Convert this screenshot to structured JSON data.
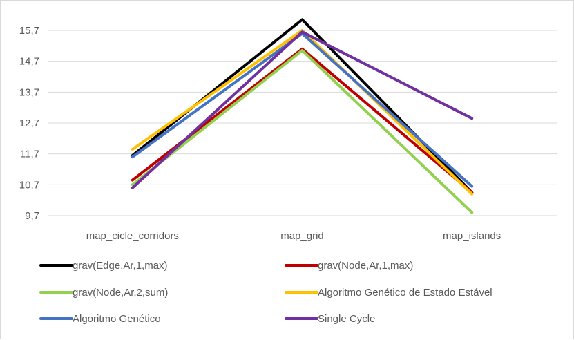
{
  "chart_data": {
    "type": "line",
    "title": "",
    "xlabel": "",
    "ylabel": "",
    "categories": [
      "map_cicle_corridors",
      "map_grid",
      "map_islands"
    ],
    "ylim": [
      9.7,
      15.7
    ],
    "yticks": [
      "9,7",
      "10,7",
      "11,7",
      "12,7",
      "13,7",
      "14,7",
      "15,7"
    ],
    "ytick_values": [
      9.7,
      10.7,
      11.7,
      12.7,
      13.7,
      14.7,
      15.7
    ],
    "grid": true,
    "legend_position": "bottom",
    "series": [
      {
        "name": "grav(Edge,Ar,1,max)",
        "color": "#000000",
        "values": [
          11.65,
          16.05,
          10.45
        ]
      },
      {
        "name": "grav(Node,Ar,1,max)",
        "color": "#c00000",
        "values": [
          10.85,
          15.1,
          10.45
        ]
      },
      {
        "name": "grav(Node,Ar,2,sum)",
        "color": "#92d050",
        "values": [
          10.7,
          15.05,
          9.8
        ]
      },
      {
        "name": "Algoritmo Genético de Estado Estável",
        "color": "#ffc000",
        "values": [
          11.85,
          15.7,
          10.4
        ]
      },
      {
        "name": "Algoritmo Genético",
        "color": "#4472c4",
        "values": [
          11.6,
          15.6,
          10.65
        ]
      },
      {
        "name": "Single Cycle",
        "color": "#7030a0",
        "values": [
          10.6,
          15.65,
          12.85
        ]
      }
    ]
  }
}
